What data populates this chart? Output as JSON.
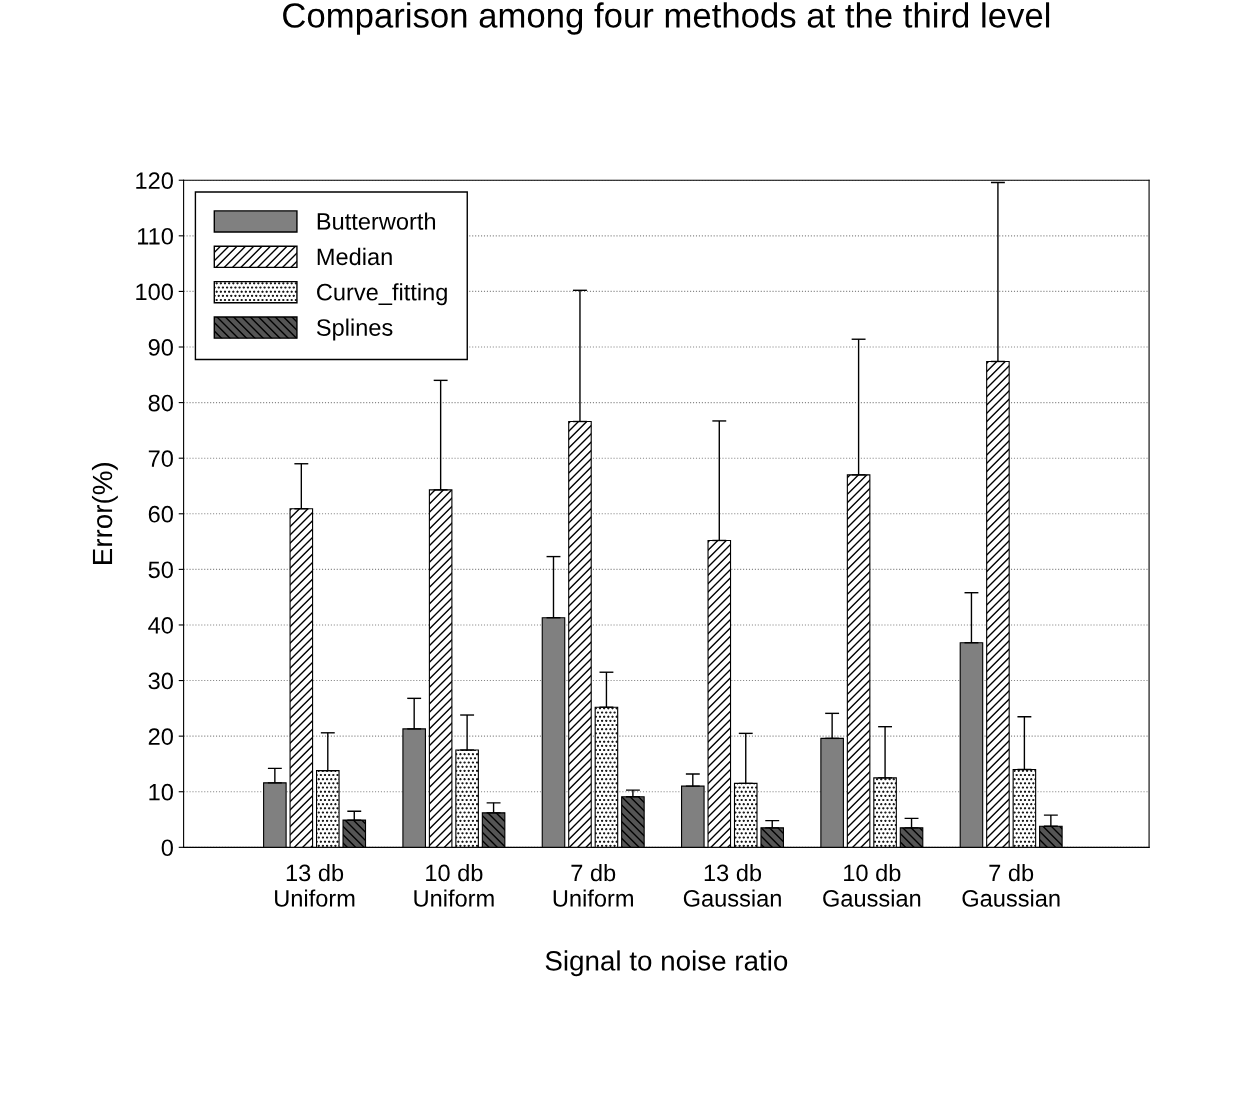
{
  "chart_data": {
    "type": "bar",
    "title": "Comparison among four methods at the third level",
    "xlabel": "Signal to noise ratio",
    "ylabel": "Error(%)",
    "categories": [
      "13 db\nUniform",
      "10 db\nUniform",
      "7 db\nUniform",
      "13 db\nGaussian",
      "10 db\nGaussian",
      "7 db\nGaussian"
    ],
    "series": [
      {
        "name": "Butterworth",
        "color": "#808080",
        "values": [
          11.6,
          21.3,
          41.3,
          11,
          19.6,
          36.8
        ],
        "errors": [
          [
            11.6,
            14.2
          ],
          [
            21.3,
            26.8
          ],
          [
            41.3,
            52.3
          ],
          [
            11,
            13.2
          ],
          [
            19.6,
            24.1
          ],
          [
            36.8,
            45.8
          ]
        ]
      },
      {
        "name": "Median",
        "color": "#ffffff",
        "values": [
          60.9,
          64.3,
          76.6,
          55.2,
          67,
          87.4
        ],
        "errors": [
          [
            60.9,
            69
          ],
          [
            64.3,
            84
          ],
          [
            76.6,
            100.2
          ],
          [
            55.2,
            76.7
          ],
          [
            67,
            91.4
          ],
          [
            87.4,
            119.6
          ]
        ]
      },
      {
        "name": "Curve_fitting",
        "color": "#ffffff",
        "values": [
          13.8,
          17.5,
          25.2,
          11.5,
          12.5,
          14
        ],
        "errors": [
          [
            13.8,
            20.6
          ],
          [
            17.5,
            23.8
          ],
          [
            25.2,
            31.5
          ],
          [
            11.5,
            20.5
          ],
          [
            12.5,
            21.7
          ],
          [
            14,
            23.5
          ]
        ]
      },
      {
        "name": "Splines",
        "color": "#555555",
        "values": [
          4.9,
          6.2,
          9.1,
          3.5,
          3.5,
          3.8
        ],
        "errors": [
          [
            4.9,
            6.5
          ],
          [
            6.2,
            8
          ],
          [
            9.1,
            10.3
          ],
          [
            3.5,
            4.8
          ],
          [
            3.5,
            5.2
          ],
          [
            3.8,
            5.8
          ]
        ]
      }
    ],
    "ylim": [
      0,
      120
    ],
    "yticks": [
      0,
      10,
      20,
      30,
      40,
      50,
      60,
      70,
      80,
      90,
      100,
      110,
      120
    ],
    "grid": "y",
    "legend": "top left"
  }
}
